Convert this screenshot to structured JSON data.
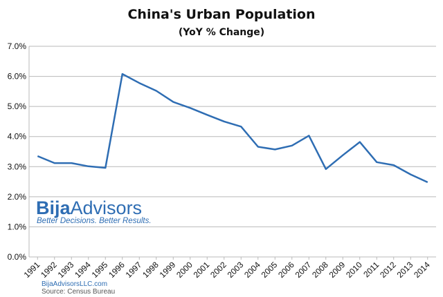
{
  "chart_data": {
    "type": "line",
    "title": "China's Urban Population",
    "subtitle": "(YoY % Change)",
    "xlabel": "",
    "ylabel": "",
    "categories": [
      "1991",
      "1992",
      "1993",
      "1994",
      "1995",
      "1996",
      "1997",
      "1998",
      "1999",
      "2000",
      "2001",
      "2002",
      "2003",
      "2004",
      "2005",
      "2006",
      "2007",
      "2008",
      "2009",
      "2010",
      "2011",
      "2012",
      "2013",
      "2014"
    ],
    "series": [
      {
        "values": [
          3.35,
          3.12,
          3.12,
          3.01,
          2.96,
          6.08,
          5.78,
          5.52,
          5.15,
          4.95,
          4.72,
          4.5,
          4.33,
          3.66,
          3.57,
          3.7,
          4.03,
          2.92,
          3.38,
          3.82,
          3.15,
          3.05,
          2.74,
          2.48
        ],
        "color": "#2e6db3"
      }
    ],
    "ylim": [
      0,
      7
    ],
    "yticks": [
      "0.0%",
      "1.0%",
      "2.0%",
      "3.0%",
      "4.0%",
      "5.0%",
      "6.0%",
      "7.0%"
    ],
    "grid": true,
    "legend": "none"
  },
  "branding": {
    "name_part1": "Bija",
    "name_part2": "Advisors",
    "tagline": "Better Decisions. Better Results.",
    "footer_link": "BijaAdvisorsLLC.com",
    "footer_source": "Source: Census Bureau"
  },
  "colors": {
    "line": "#2e6db3",
    "grid": "#b8b8b8",
    "brand": "#2e6db3"
  }
}
